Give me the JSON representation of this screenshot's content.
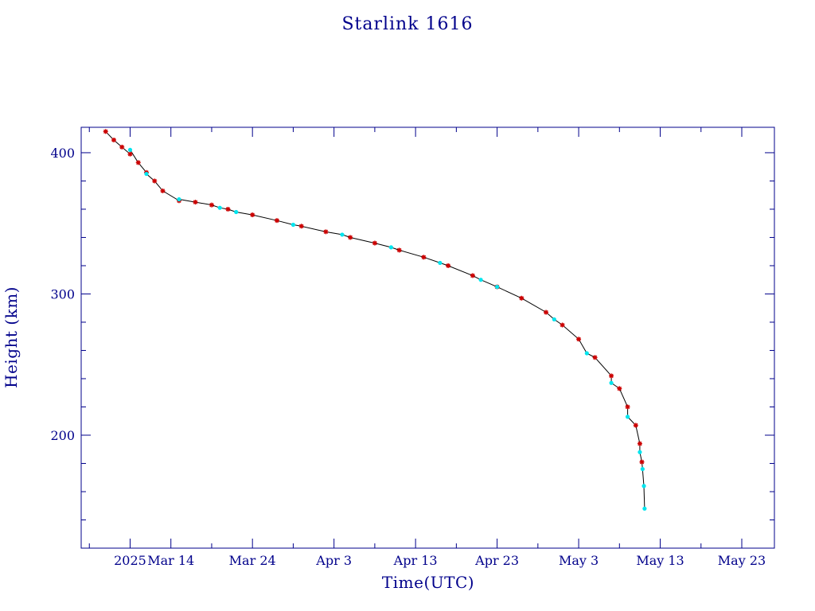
{
  "chart_data": {
    "type": "scatter",
    "title": "Starlink 1616",
    "xlabel": "Time(UTC)",
    "ylabel": "Height (km)",
    "x_axis": {
      "type": "date",
      "range": [
        "2025-03-03",
        "2025-05-27"
      ],
      "major_ticks": [
        {
          "date": "2025-03-09",
          "label": "2025"
        },
        {
          "date": "2025-03-14",
          "label": "Mar 14"
        },
        {
          "date": "2025-03-24",
          "label": "Mar 24"
        },
        {
          "date": "2025-04-03",
          "label": "Apr  3"
        },
        {
          "date": "2025-04-13",
          "label": "Apr 13"
        },
        {
          "date": "2025-04-23",
          "label": "Apr 23"
        },
        {
          "date": "2025-05-03",
          "label": "May  3"
        },
        {
          "date": "2025-05-13",
          "label": "May 13"
        },
        {
          "date": "2025-05-23",
          "label": "May 23"
        }
      ],
      "minor_tick_days": 5
    },
    "y_axis": {
      "range": [
        120,
        418
      ],
      "major_ticks": [
        200,
        300,
        400
      ],
      "labeled_ticks": [
        {
          "value": 200,
          "label": "200"
        },
        {
          "value": 300,
          "label": "300"
        },
        {
          "value": 400,
          "label": "400"
        }
      ],
      "minor_step": 20
    },
    "grid": false,
    "colors": {
      "axis": "#00008b",
      "line": "#000000",
      "series_a": "#cc0000",
      "series_b": "#00e5ee"
    },
    "series": [
      {
        "marker": "star",
        "color": "#cc0000",
        "points": [
          [
            "2025-03-06",
            415
          ],
          [
            "2025-03-07",
            409
          ],
          [
            "2025-03-08",
            404
          ],
          [
            "2025-03-09",
            399
          ],
          [
            "2025-03-10",
            393
          ],
          [
            "2025-03-11",
            386
          ],
          [
            "2025-03-12",
            380
          ],
          [
            "2025-03-13",
            373
          ],
          [
            "2025-03-15",
            366
          ],
          [
            "2025-03-17",
            365
          ],
          [
            "2025-03-19",
            363
          ],
          [
            "2025-03-21",
            360
          ],
          [
            "2025-03-24",
            356
          ],
          [
            "2025-03-27",
            352
          ],
          [
            "2025-03-30",
            348
          ],
          [
            "2025-04-02",
            344
          ],
          [
            "2025-04-05",
            340
          ],
          [
            "2025-04-08",
            336
          ],
          [
            "2025-04-11",
            331
          ],
          [
            "2025-04-14",
            326
          ],
          [
            "2025-04-17",
            320
          ],
          [
            "2025-04-20",
            313
          ],
          [
            "2025-04-23",
            305
          ],
          [
            "2025-04-26",
            297
          ],
          [
            "2025-04-29",
            287
          ],
          [
            "2025-05-01",
            278
          ],
          [
            "2025-05-03",
            268
          ],
          [
            "2025-05-05",
            255
          ],
          [
            "2025-05-07",
            242
          ],
          [
            "2025-05-08",
            233
          ],
          [
            "2025-05-09",
            220
          ],
          [
            "2025-05-10",
            207
          ],
          [
            "2025-05-10T12:00",
            194
          ],
          [
            "2025-05-10T18:00",
            181
          ]
        ]
      },
      {
        "marker": "dot",
        "color": "#00e5ee",
        "points": [
          [
            "2025-03-09",
            402
          ],
          [
            "2025-03-11",
            385
          ],
          [
            "2025-03-15",
            367
          ],
          [
            "2025-03-20",
            361
          ],
          [
            "2025-03-22",
            358
          ],
          [
            "2025-03-29",
            349
          ],
          [
            "2025-04-04",
            342
          ],
          [
            "2025-04-10",
            333
          ],
          [
            "2025-04-16",
            322
          ],
          [
            "2025-04-21",
            310
          ],
          [
            "2025-04-23",
            305
          ],
          [
            "2025-04-30",
            282
          ],
          [
            "2025-05-04",
            258
          ],
          [
            "2025-05-07",
            237
          ],
          [
            "2025-05-09",
            213
          ],
          [
            "2025-05-10T12:00",
            188
          ],
          [
            "2025-05-10T20:00",
            176
          ],
          [
            "2025-05-11",
            164
          ],
          [
            "2025-05-11T02:00",
            148
          ]
        ]
      }
    ]
  }
}
